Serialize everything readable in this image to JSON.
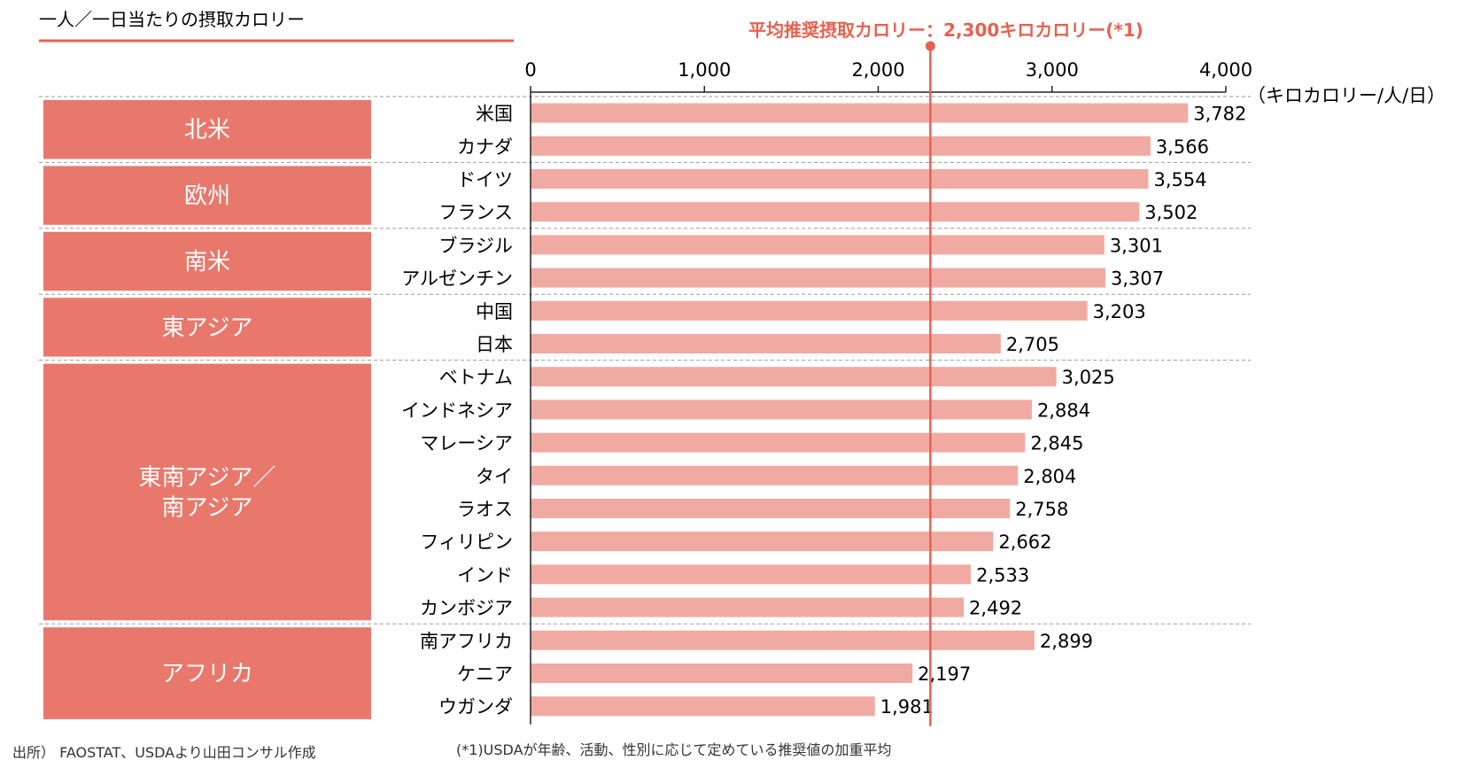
{
  "colors": {
    "bar": "#f1aaa2",
    "region": "#e8786b",
    "accent": "#e8604f",
    "axis": "#222222",
    "divider": "#9a9a9a"
  },
  "header": {
    "title": "一人／一日当たりの摂取カロリー",
    "reference_label": "平均推奨摂取カロリー：2,300キロカロリー(*1)"
  },
  "footer": {
    "source": "出所） FAOSTAT、USDAより山田コンサル作成",
    "note": "(*1)USDAが年齢、活動、性別に応じて定めている推奨値の加重平均"
  },
  "chart_data": {
    "type": "bar",
    "orientation": "horizontal",
    "title": "一人／一日当たりの摂取カロリー",
    "unit_label": "（キロカロリー/人/日）",
    "xlim": [
      0,
      4000
    ],
    "x_ticks": [
      0,
      1000,
      2000,
      3000,
      4000
    ],
    "x_tick_labels": [
      "0",
      "1,000",
      "2,000",
      "3,000",
      "4,000"
    ],
    "reference_line": {
      "value": 2300,
      "label": "平均推奨摂取カロリー：2,300キロカロリー(*1)"
    },
    "groups": [
      {
        "name": "北米",
        "categories": [
          "米国",
          "カナダ"
        ]
      },
      {
        "name": "欧州",
        "categories": [
          "ドイツ",
          "フランス"
        ]
      },
      {
        "name": "南米",
        "categories": [
          "ブラジル",
          "アルゼンチン"
        ]
      },
      {
        "name": "東アジア",
        "categories": [
          "中国",
          "日本"
        ]
      },
      {
        "name": "東南アジア／南アジア",
        "categories": [
          "ベトナム",
          "インドネシア",
          "マレーシア",
          "タイ",
          "ラオス",
          "フィリピン",
          "インド",
          "カンボジア"
        ]
      },
      {
        "name": "アフリカ",
        "categories": [
          "南アフリカ",
          "ケニア",
          "ウガンダ"
        ]
      }
    ],
    "categories": [
      "米国",
      "カナダ",
      "ドイツ",
      "フランス",
      "ブラジル",
      "アルゼンチン",
      "中国",
      "日本",
      "ベトナム",
      "インドネシア",
      "マレーシア",
      "タイ",
      "ラオス",
      "フィリピン",
      "インド",
      "カンボジア",
      "南アフリカ",
      "ケニア",
      "ウガンダ"
    ],
    "values": [
      3782,
      3566,
      3554,
      3502,
      3301,
      3307,
      3203,
      2705,
      3025,
      2884,
      2845,
      2804,
      2758,
      2662,
      2533,
      2492,
      2899,
      2197,
      1981
    ],
    "value_labels": [
      "3,782",
      "3,566",
      "3,554",
      "3,502",
      "3,301",
      "3,307",
      "3,203",
      "2,705",
      "3,025",
      "2,884",
      "2,845",
      "2,804",
      "2,758",
      "2,662",
      "2,533",
      "2,492",
      "2,899",
      "2,197",
      "1,981"
    ]
  }
}
